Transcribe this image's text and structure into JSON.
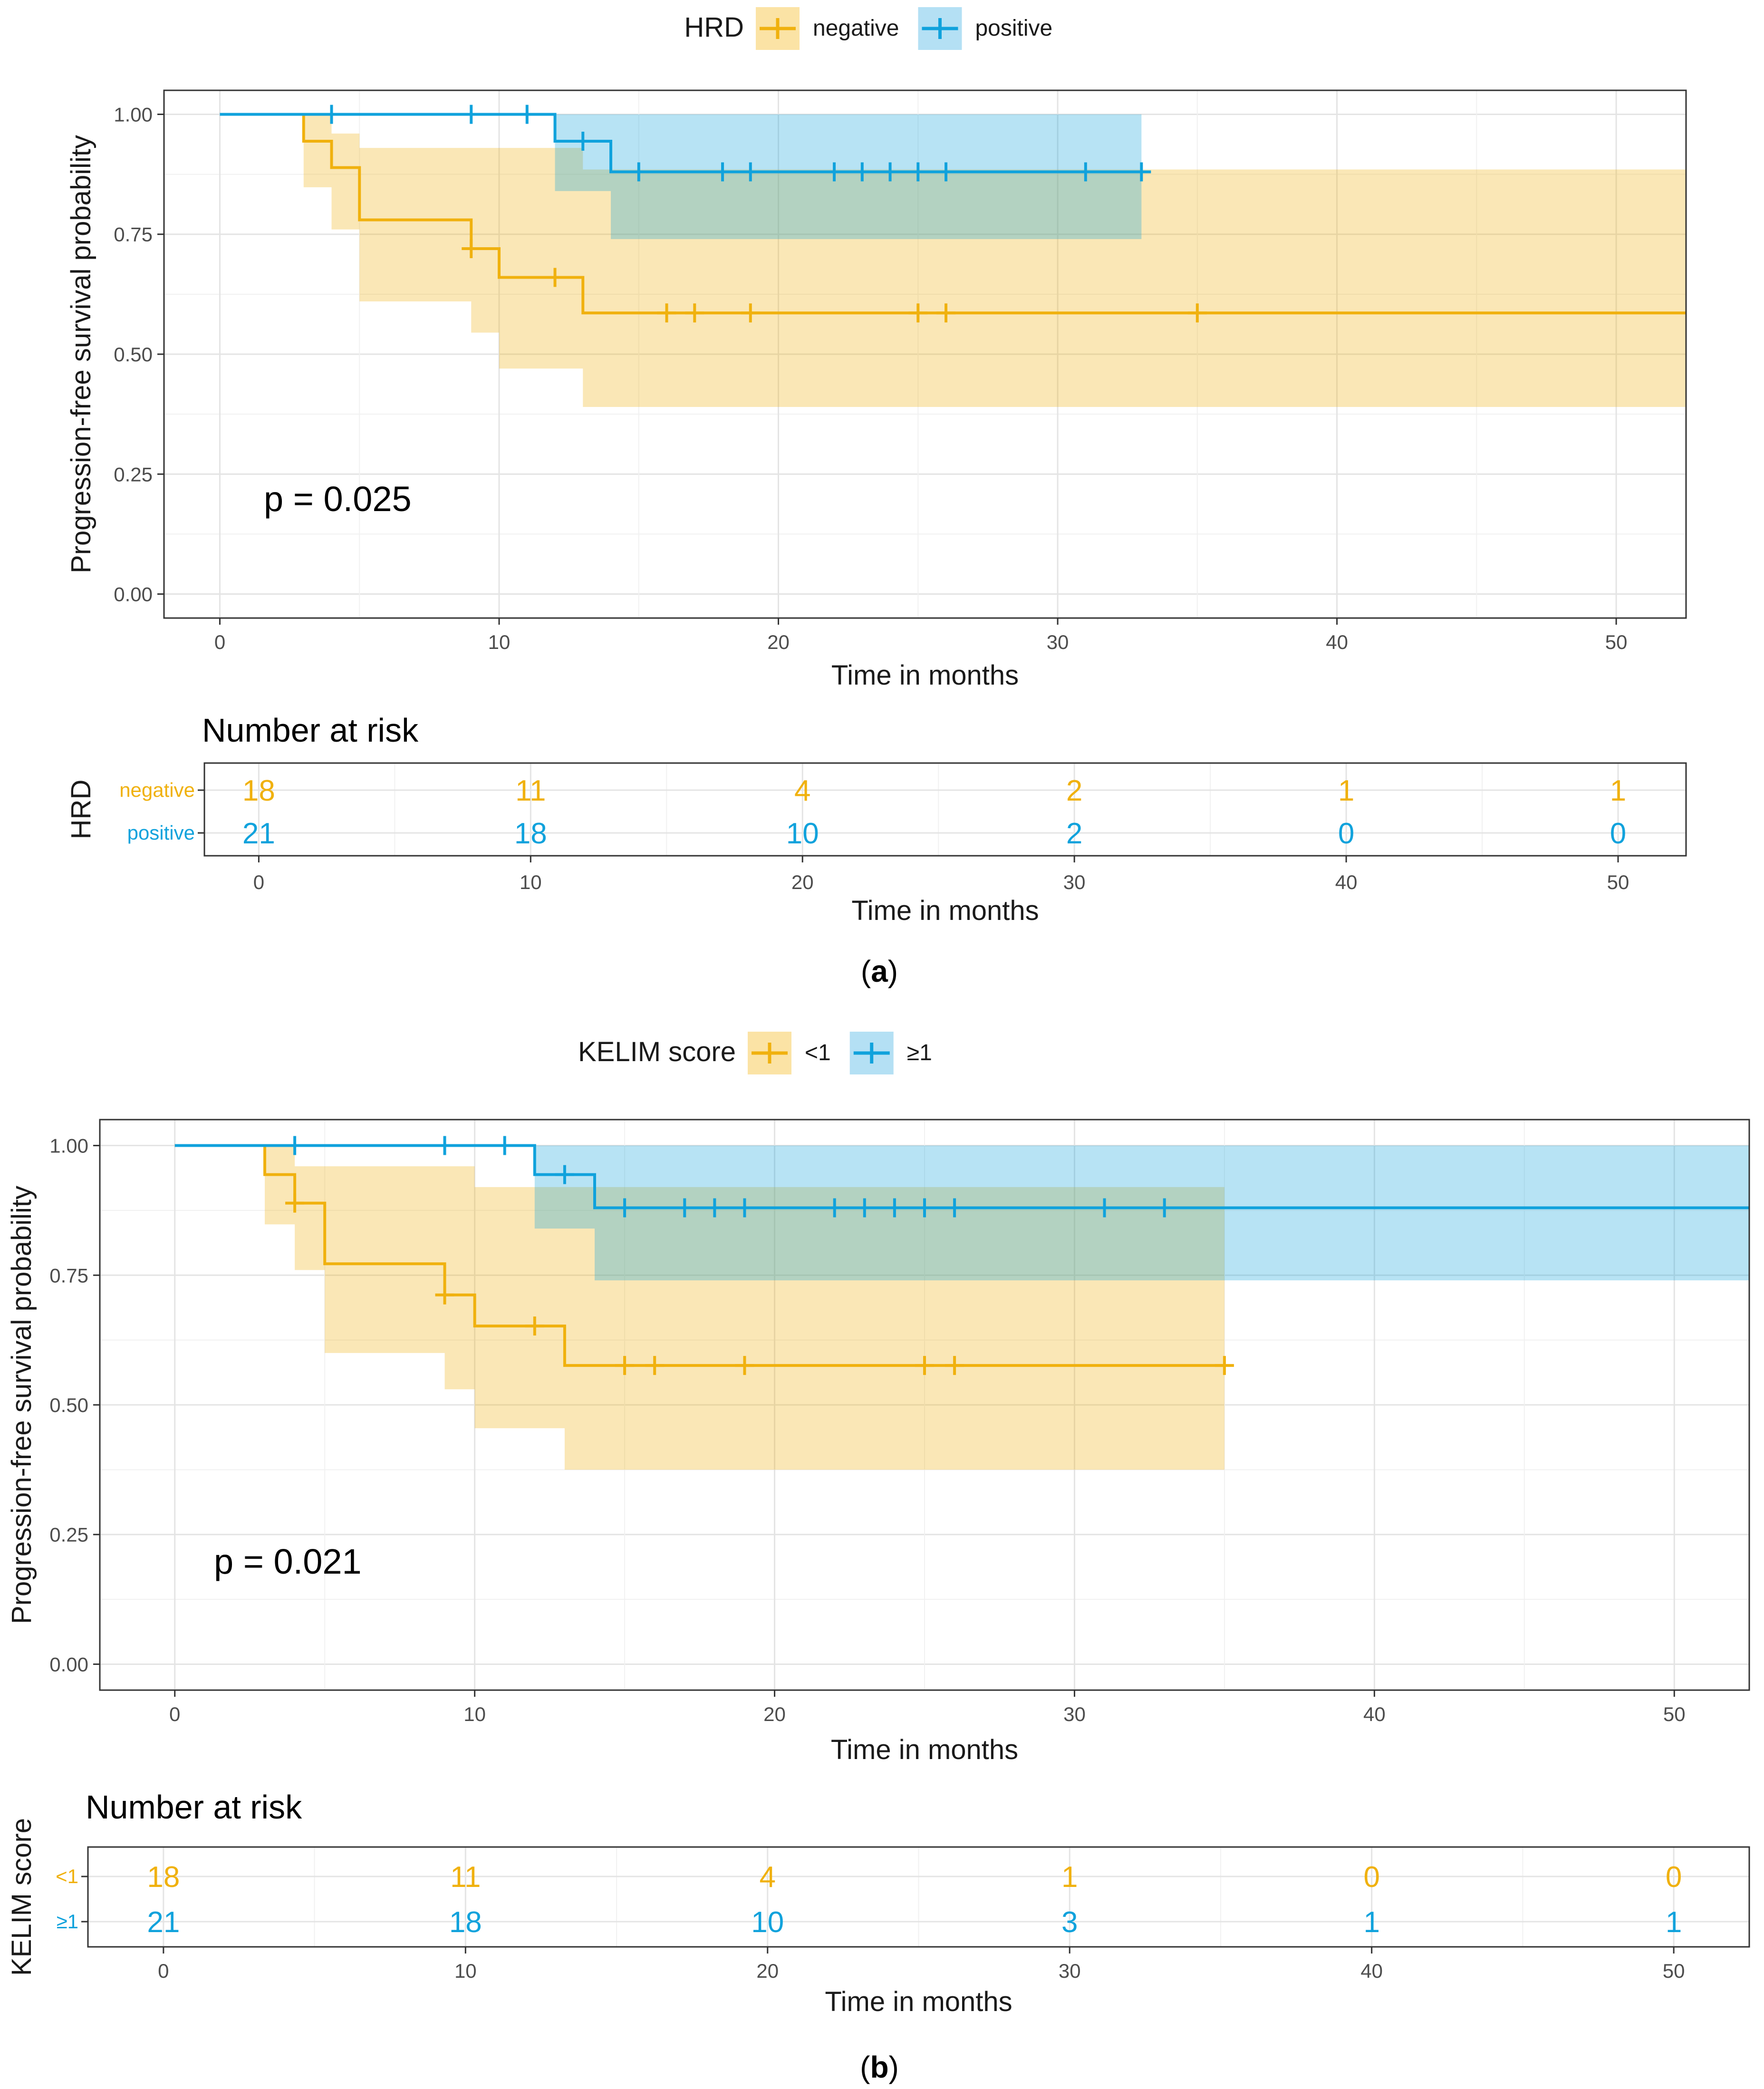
{
  "panels": [
    {
      "caption": "(a)",
      "caption_letter": "a",
      "chart_data": {
        "type": "kaplan-meier",
        "legend_title": "HRD",
        "legend_position": "top",
        "ylabel": "Progression-free survival probability",
        "xlabel": "Time in months",
        "xlim": [
          -2,
          52.5
        ],
        "ylim": [
          -0.05,
          1.05
        ],
        "xticks": [
          0,
          10,
          20,
          30,
          40,
          50
        ],
        "yticks": [
          0,
          0.25,
          0.5,
          0.75,
          1.0
        ],
        "ytick_labels": [
          "0.00",
          "0.25",
          "0.50",
          "0.75",
          "1.00"
        ],
        "pvalue": "p = 0.025",
        "series": [
          {
            "name": "negative",
            "color": "#F0B10E",
            "fill": "#FBE3A5",
            "steps": [
              [
                0,
                1.0
              ],
              [
                3,
                0.944
              ],
              [
                4,
                0.889
              ],
              [
                5,
                0.78
              ],
              [
                9,
                0.72
              ],
              [
                10,
                0.66
              ],
              [
                13,
                0.586
              ],
              [
                52.5,
                0.586
              ]
            ],
            "ci": [
              [
                0,
                1.0,
                1.0
              ],
              [
                3,
                1.0,
                0.848
              ],
              [
                4,
                0.96,
                0.76
              ],
              [
                5,
                0.93,
                0.61
              ],
              [
                9,
                0.93,
                0.545
              ],
              [
                10,
                0.93,
                0.47
              ],
              [
                13,
                0.885,
                0.39
              ],
              [
                52.5,
                0.885,
                0.39
              ]
            ],
            "censor": [
              [
                9,
                0.72
              ],
              [
                12,
                0.66
              ],
              [
                16,
                0.586
              ],
              [
                17,
                0.586
              ],
              [
                19,
                0.586
              ],
              [
                25,
                0.586
              ],
              [
                26,
                0.586
              ],
              [
                35,
                0.586
              ]
            ]
          },
          {
            "name": "positive",
            "color": "#10A2DC",
            "fill": "#B4E0F4",
            "steps": [
              [
                0,
                1.0
              ],
              [
                12,
                0.944
              ],
              [
                14,
                0.88
              ],
              [
                33,
                0.88
              ]
            ],
            "ci": [
              [
                0,
                1.0,
                1.0
              ],
              [
                12,
                1.0,
                0.84
              ],
              [
                14,
                1.0,
                0.74
              ],
              [
                33,
                1.0,
                0.74
              ]
            ],
            "censor": [
              [
                4,
                1.0
              ],
              [
                9,
                1.0
              ],
              [
                11,
                1.0
              ],
              [
                13,
                0.944
              ],
              [
                15,
                0.88
              ],
              [
                18,
                0.88
              ],
              [
                19,
                0.88
              ],
              [
                22,
                0.88
              ],
              [
                23,
                0.88
              ],
              [
                24,
                0.88
              ],
              [
                25,
                0.88
              ],
              [
                26,
                0.88
              ],
              [
                31,
                0.88
              ],
              [
                33,
                0.88
              ]
            ]
          }
        ]
      },
      "risk_table": {
        "title": "Number at risk",
        "ylabel": "HRD",
        "xlabel": "Time in months",
        "times": [
          0,
          10,
          20,
          30,
          40,
          50
        ],
        "tick_labels": [
          "0",
          "10",
          "20",
          "30",
          "40",
          "50"
        ],
        "rows": [
          {
            "label": "negative",
            "color": "#F0B10E",
            "values": [
              "18",
              "11",
              "4",
              "2",
              "1",
              "1"
            ]
          },
          {
            "label": "positive",
            "color": "#10A2DC",
            "values": [
              "21",
              "18",
              "10",
              "2",
              "0",
              "0"
            ]
          }
        ]
      }
    },
    {
      "caption": "(b)",
      "caption_letter": "b",
      "chart_data": {
        "type": "kaplan-meier",
        "legend_title": "KELIM score",
        "legend_position": "top",
        "ylabel": "Progression-free survival probability",
        "xlabel": "Time in months",
        "xlim": [
          -2.5,
          52.5
        ],
        "ylim": [
          -0.05,
          1.05
        ],
        "xticks": [
          0,
          10,
          20,
          30,
          40,
          50
        ],
        "yticks": [
          0,
          0.25,
          0.5,
          0.75,
          1.0
        ],
        "ytick_labels": [
          "0.00",
          "0.25",
          "0.50",
          "0.75",
          "1.00"
        ],
        "pvalue": "p = 0.021",
        "series": [
          {
            "name": "<1",
            "color": "#F0B10E",
            "fill": "#FBE3A5",
            "steps": [
              [
                0,
                1.0
              ],
              [
                3,
                0.944
              ],
              [
                4,
                0.889
              ],
              [
                5,
                0.772
              ],
              [
                9,
                0.712
              ],
              [
                10,
                0.652
              ],
              [
                13,
                0.576
              ],
              [
                35,
                0.576
              ]
            ],
            "ci": [
              [
                0,
                1.0,
                1.0
              ],
              [
                3,
                1.0,
                0.848
              ],
              [
                4,
                0.96,
                0.76
              ],
              [
                5,
                0.96,
                0.6
              ],
              [
                9,
                0.96,
                0.53
              ],
              [
                10,
                0.92,
                0.455
              ],
              [
                13,
                0.92,
                0.375
              ],
              [
                35,
                0.92,
                0.375
              ]
            ],
            "censor": [
              [
                4,
                0.889
              ],
              [
                9,
                0.712
              ],
              [
                12,
                0.652
              ],
              [
                15,
                0.576
              ],
              [
                16,
                0.576
              ],
              [
                19,
                0.576
              ],
              [
                25,
                0.576
              ],
              [
                26,
                0.576
              ],
              [
                35,
                0.576
              ]
            ]
          },
          {
            "name": "≥1",
            "color": "#10A2DC",
            "fill": "#B4E0F4",
            "steps": [
              [
                0,
                1.0
              ],
              [
                12,
                0.944
              ],
              [
                14,
                0.88
              ],
              [
                52.5,
                0.88
              ]
            ],
            "ci": [
              [
                0,
                1.0,
                1.0
              ],
              [
                12,
                1.0,
                0.84
              ],
              [
                14,
                1.0,
                0.74
              ],
              [
                52.5,
                1.0,
                0.74
              ]
            ],
            "censor": [
              [
                4,
                1.0
              ],
              [
                9,
                1.0
              ],
              [
                11,
                1.0
              ],
              [
                13,
                0.944
              ],
              [
                15,
                0.88
              ],
              [
                17,
                0.88
              ],
              [
                18,
                0.88
              ],
              [
                19,
                0.88
              ],
              [
                22,
                0.88
              ],
              [
                23,
                0.88
              ],
              [
                24,
                0.88
              ],
              [
                25,
                0.88
              ],
              [
                26,
                0.88
              ],
              [
                31,
                0.88
              ],
              [
                33,
                0.88
              ]
            ]
          }
        ]
      },
      "risk_table": {
        "title": "Number at risk",
        "ylabel": "KELIM score",
        "xlabel": "Time in months",
        "times": [
          0,
          10,
          20,
          30,
          40,
          50
        ],
        "tick_labels": [
          "0",
          "10",
          "20",
          "30",
          "40",
          "50"
        ],
        "rows": [
          {
            "label": "<1",
            "color": "#F0B10E",
            "values": [
              "18",
              "11",
              "4",
              "1",
              "0",
              "0"
            ]
          },
          {
            "label": "≥1",
            "color": "#10A2DC",
            "values": [
              "21",
              "18",
              "10",
              "3",
              "1",
              "1"
            ]
          }
        ]
      }
    }
  ]
}
